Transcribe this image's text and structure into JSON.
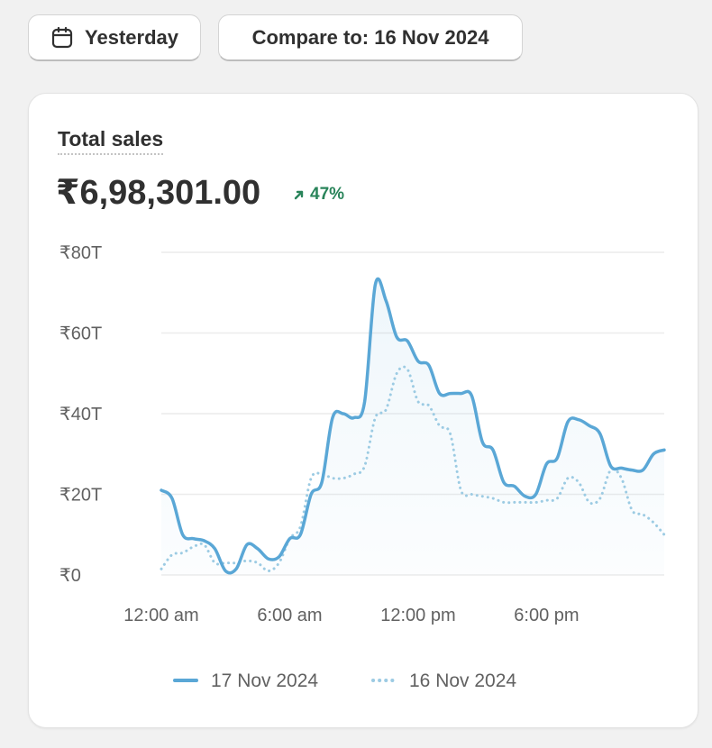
{
  "filters": {
    "date_label": "Yesterday",
    "compare_label": "Compare to: 16 Nov 2024"
  },
  "metric": {
    "title": "Total sales",
    "value": "₹6,98,301.00",
    "change": "47%",
    "change_color": "#29845a"
  },
  "colors": {
    "current": "#5aa7d6",
    "previous": "#9ccbe3",
    "gridline": "#ececec"
  },
  "chart_data": {
    "type": "line",
    "x": [
      0,
      0.5,
      1,
      1.5,
      2,
      2.5,
      3,
      3.5,
      4,
      4.5,
      5,
      5.5,
      6,
      6.5,
      7,
      7.5,
      8,
      8.5,
      9,
      9.5,
      10,
      10.5,
      11,
      11.5,
      12,
      12.5,
      13,
      13.5,
      14,
      14.5,
      15,
      15.5,
      16,
      16.5,
      17,
      17.5,
      18,
      18.5,
      19,
      19.5,
      20,
      20.5,
      21,
      21.5,
      22,
      22.5,
      23,
      23.5
    ],
    "xlim": [
      0,
      23.5
    ],
    "xticks": [
      {
        "value": 0,
        "label": "12:00 am"
      },
      {
        "value": 6,
        "label": "6:00 am"
      },
      {
        "value": 12,
        "label": "12:00 pm"
      },
      {
        "value": 18,
        "label": "6:00 pm"
      }
    ],
    "ylim": [
      0,
      80
    ],
    "yticks": [
      {
        "value": 0,
        "label": "₹0"
      },
      {
        "value": 20,
        "label": "₹20T"
      },
      {
        "value": 40,
        "label": "₹40T"
      },
      {
        "value": 60,
        "label": "₹60T"
      },
      {
        "value": 80,
        "label": "₹80T"
      }
    ],
    "grid": true,
    "legend_position": "bottom",
    "series": [
      {
        "name": "17 Nov 2024",
        "style": "solid",
        "values": [
          21,
          19,
          10,
          9,
          8.5,
          6.5,
          1,
          1.5,
          7.5,
          6.5,
          4,
          4.5,
          9,
          10,
          20,
          23,
          39,
          40,
          39,
          43,
          72,
          68,
          59,
          58,
          53,
          52,
          45,
          45,
          45,
          44.5,
          33,
          31,
          23,
          22,
          19.5,
          20,
          27.5,
          29,
          38,
          38.5,
          37,
          35,
          27,
          26.5,
          26,
          26,
          30,
          31
        ]
      },
      {
        "name": "16 Nov 2024",
        "style": "dotted",
        "values": [
          1.5,
          5,
          5.5,
          7,
          7.5,
          3,
          3,
          3,
          3.5,
          3,
          1,
          3,
          9,
          12,
          24,
          25,
          24,
          24,
          25,
          27,
          39,
          41,
          50,
          51,
          43,
          42,
          37,
          35,
          21,
          20,
          19.5,
          19,
          18,
          18,
          18,
          18,
          18.5,
          19,
          24,
          23,
          18,
          19,
          26,
          24,
          16,
          15,
          13,
          10
        ]
      }
    ]
  }
}
